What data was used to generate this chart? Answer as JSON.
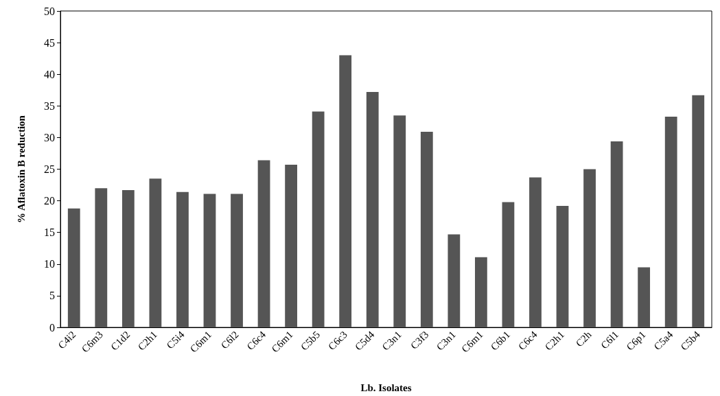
{
  "chart_data": {
    "type": "bar",
    "xlabel": "Lb. Isolates",
    "ylabel": "% Aflatoxin B reduction",
    "categories": [
      "C4i2",
      "C6m3",
      "C1d2",
      "C2h1",
      "C5i4",
      "C6m1",
      "C6l2",
      "C6c4",
      "C6m1",
      "C5b5",
      "C6c3",
      "C5d4",
      "C3n1",
      "C3f3",
      "C3n1",
      "C6m1",
      "C6b1",
      "C6c4",
      "C2h1",
      "C2h",
      "C6l1",
      "C6p1",
      "C5a4",
      "C5b4"
    ],
    "values": [
      18.8,
      22,
      21.7,
      23.5,
      21.4,
      21.1,
      21.1,
      26.4,
      25.7,
      34.1,
      43,
      37.2,
      33.5,
      30.9,
      14.7,
      11.1,
      19.8,
      23.7,
      19.2,
      25,
      29.4,
      9.5,
      33.3,
      36.7
    ],
    "color": "#555555",
    "ylim": [
      0,
      50
    ],
    "yticks": [
      0,
      5,
      10,
      15,
      20,
      25,
      30,
      35,
      40,
      45,
      50
    ]
  }
}
